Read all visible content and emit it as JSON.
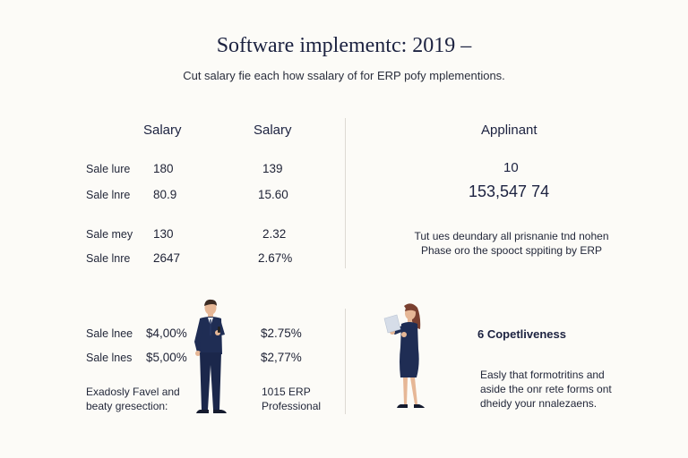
{
  "header": {
    "title": "Software implementc: 2019 –",
    "subtitle": "Cut salary fie each how ssalary of for ERP pofy mplementions."
  },
  "table": {
    "columns": [
      "Salary",
      "Salary",
      "Applinant"
    ],
    "rows": [
      {
        "label": "Sale lure",
        "v1": "180",
        "v2": "139"
      },
      {
        "label": "Sale lnre",
        "v1": "80.9",
        "v2": "15.60"
      },
      {
        "label": "Sale mey",
        "v1": "130",
        "v2": "2.32"
      },
      {
        "label": "Sale lnre",
        "v1": "2647",
        "v2": "2.67%"
      }
    ],
    "lower_rows": [
      {
        "label": "Sale lnee",
        "v1": "$4,00%",
        "v2": "$2.75%"
      },
      {
        "label": "Sale lnes",
        "v1": "$5,00%",
        "v2": "$2,77%"
      }
    ],
    "footer_left_line1": "Exadosly Favel and",
    "footer_left_line2": "beaty gresection:",
    "footer_right_line1": "1015 ERP",
    "footer_right_line2": "Professional"
  },
  "applicant": {
    "count": "10",
    "total": "153,547 74",
    "note_line1": "Tut ues deundary all prisnanie tnd nohen",
    "note_line2": "Phase oro the spooct sppiting by ERP"
  },
  "feature": {
    "heading": "6 Copetliveness",
    "line1": "Easly that formotritins and",
    "line2": "aside the onr rete forms ont",
    "line3": "dheidy your nnalezaens."
  },
  "colors": {
    "navy": "#1f2d54",
    "skin": "#e6b796",
    "hair_dark": "#3a2a22",
    "hair_brown": "#7a4030",
    "divider": "#dddad3",
    "background": "#fcfbf7"
  }
}
